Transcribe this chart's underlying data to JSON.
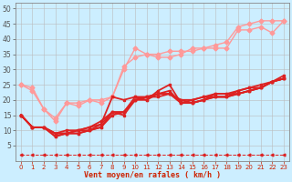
{
  "xlabel": "Vent moyen/en rafales ( km/h )",
  "bg_color": "#cceeff",
  "grid_color": "#bbbbbb",
  "xlim": [
    -0.5,
    23.5
  ],
  "ylim": [
    0,
    52
  ],
  "yticks": [
    5,
    10,
    15,
    20,
    25,
    30,
    35,
    40,
    45,
    50
  ],
  "xticks": [
    0,
    1,
    2,
    3,
    4,
    5,
    6,
    7,
    8,
    9,
    10,
    11,
    12,
    13,
    14,
    15,
    16,
    17,
    18,
    19,
    20,
    21,
    22,
    23
  ],
  "series": [
    {
      "x": [
        0,
        1,
        2,
        3,
        4,
        5,
        6,
        7,
        8,
        9,
        10,
        11,
        12,
        13,
        14,
        15,
        16,
        17,
        18,
        19,
        20,
        21,
        22,
        23
      ],
      "y": [
        25,
        24,
        17,
        14,
        19,
        19,
        20,
        19,
        21,
        30,
        37,
        35,
        34,
        34,
        35,
        37,
        37,
        38,
        39,
        44,
        45,
        46,
        46,
        46
      ],
      "color": "#ff9999",
      "lw": 1.0,
      "marker": "D",
      "ms": 2.5
    },
    {
      "x": [
        0,
        1,
        2,
        3,
        4,
        5,
        6,
        7,
        8,
        9,
        10,
        11,
        12,
        13,
        14,
        15,
        16,
        17,
        18,
        19,
        20,
        21,
        22,
        23
      ],
      "y": [
        25,
        23,
        17,
        13,
        19,
        18,
        20,
        20,
        21,
        31,
        34,
        35,
        35,
        36,
        36,
        36,
        37,
        37,
        37,
        43,
        43,
        44,
        42,
        46
      ],
      "color": "#ff9999",
      "lw": 1.0,
      "marker": "D",
      "ms": 2.5
    },
    {
      "x": [
        0,
        1,
        2,
        3,
        4,
        5,
        6,
        7,
        8,
        9,
        10,
        11,
        12,
        13,
        14,
        15,
        16,
        17,
        18,
        19,
        20,
        21,
        22,
        23
      ],
      "y": [
        15,
        11,
        11,
        8,
        9,
        9,
        10,
        12,
        21,
        20,
        21,
        21,
        22,
        22,
        20,
        19,
        20,
        22,
        22,
        22,
        23,
        24,
        26,
        28
      ],
      "color": "#dd2222",
      "lw": 1.3,
      "marker": "s",
      "ms": 2.0
    },
    {
      "x": [
        0,
        1,
        2,
        3,
        4,
        5,
        6,
        7,
        8,
        9,
        10,
        11,
        12,
        13,
        14,
        15,
        16,
        17,
        18,
        19,
        20,
        21,
        22,
        23
      ],
      "y": [
        15,
        11,
        11,
        8,
        9,
        9,
        10,
        11,
        16,
        15,
        20,
        21,
        21,
        22,
        19,
        19,
        20,
        21,
        21,
        22,
        23,
        24,
        26,
        27
      ],
      "color": "#dd2222",
      "lw": 1.3,
      "marker": "s",
      "ms": 2.0
    },
    {
      "x": [
        0,
        1,
        2,
        3,
        4,
        5,
        6,
        7,
        8,
        9,
        10,
        11,
        12,
        13,
        14,
        15,
        16,
        17,
        18,
        19,
        20,
        21,
        22,
        23
      ],
      "y": [
        15,
        11,
        11,
        9,
        9,
        10,
        10,
        11,
        15,
        16,
        20,
        20,
        23,
        25,
        19,
        19,
        20,
        21,
        21,
        22,
        23,
        24,
        26,
        27
      ],
      "color": "#dd2222",
      "lw": 1.3,
      "marker": "s",
      "ms": 2.0
    },
    {
      "x": [
        0,
        1,
        2,
        3,
        4,
        5,
        6,
        7,
        8,
        9,
        10,
        11,
        12,
        13,
        14,
        15,
        16,
        17,
        18,
        19,
        20,
        21,
        22,
        23
      ],
      "y": [
        15,
        11,
        11,
        9,
        9,
        10,
        11,
        12,
        16,
        16,
        20,
        21,
        22,
        23,
        19,
        20,
        21,
        21,
        21,
        23,
        24,
        24,
        26,
        27
      ],
      "color": "#dd2222",
      "lw": 1.3,
      "marker": "s",
      "ms": 2.0
    },
    {
      "x": [
        0,
        1,
        2,
        3,
        4,
        5,
        6,
        7,
        8,
        9,
        10,
        11,
        12,
        13,
        14,
        15,
        16,
        17,
        18,
        19,
        20,
        21,
        22,
        23
      ],
      "y": [
        15,
        11,
        11,
        9,
        10,
        10,
        11,
        13,
        16,
        16,
        21,
        20,
        22,
        22,
        20,
        20,
        21,
        22,
        22,
        23,
        24,
        25,
        26,
        27
      ],
      "color": "#dd2222",
      "lw": 1.3,
      "marker": "s",
      "ms": 2.0
    },
    {
      "x": [
        0,
        1,
        2,
        3,
        4,
        5,
        6,
        7,
        8,
        9,
        10,
        11,
        12,
        13,
        14,
        15,
        16,
        17,
        18,
        19,
        20,
        21,
        22,
        23
      ],
      "y": [
        2,
        2,
        2,
        2,
        2,
        2,
        2,
        2,
        2,
        2,
        2,
        2,
        2,
        2,
        2,
        2,
        2,
        2,
        2,
        2,
        2,
        2,
        2,
        2
      ],
      "color": "#dd2222",
      "lw": 0.7,
      "marker": "<",
      "ms": 2.0,
      "dashed": true
    }
  ]
}
